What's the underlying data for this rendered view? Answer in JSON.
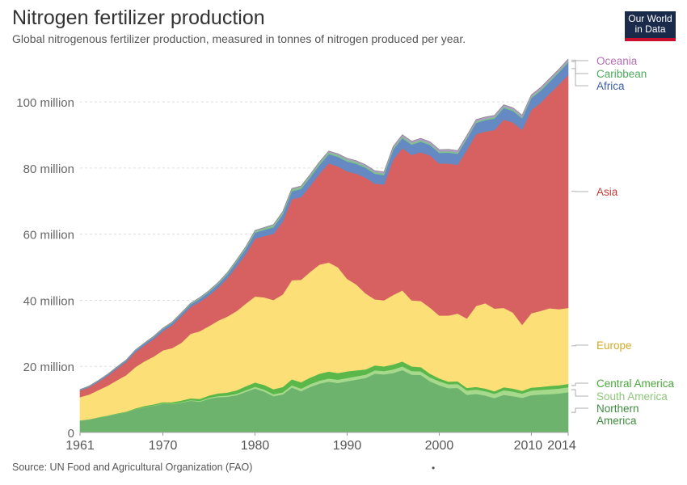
{
  "header": {
    "title": "Nitrogen fertilizer production",
    "subtitle": "Global nitrogenous fertilizer production, measured in tonnes of nitrogen produced per year.",
    "logo_line1": "Our World",
    "logo_line2": "in Data"
  },
  "footer": {
    "source": "Source: UN Food and Agricultural Organization (FAO)",
    "dot": "•"
  },
  "chart_data": {
    "type": "area",
    "stacked": true,
    "title": "Nitrogen fertilizer production",
    "subtitle": "Global nitrogenous fertilizer production, measured in tonnes of nitrogen produced per year.",
    "xlim": [
      1961,
      2014
    ],
    "ylim": [
      0,
      113000000
    ],
    "x_ticks": [
      1961,
      1970,
      1980,
      1990,
      2000,
      2010,
      2014
    ],
    "y_ticks": [
      {
        "value": 0,
        "label": "0"
      },
      {
        "value": 20000000,
        "label": "20 million"
      },
      {
        "value": 40000000,
        "label": "40 million"
      },
      {
        "value": 60000000,
        "label": "60 million"
      },
      {
        "value": 80000000,
        "label": "80 million"
      },
      {
        "value": 100000000,
        "label": "100 million"
      }
    ],
    "grid": true,
    "legend": "right-edge labels",
    "x": [
      1961,
      1962,
      1963,
      1964,
      1965,
      1966,
      1967,
      1968,
      1969,
      1970,
      1971,
      1972,
      1973,
      1974,
      1975,
      1976,
      1977,
      1978,
      1979,
      1980,
      1981,
      1982,
      1983,
      1984,
      1985,
      1986,
      1987,
      1988,
      1989,
      1990,
      1991,
      1992,
      1993,
      1994,
      1995,
      1996,
      1997,
      1998,
      1999,
      2000,
      2001,
      2002,
      2003,
      2004,
      2005,
      2006,
      2007,
      2008,
      2009,
      2010,
      2011,
      2012,
      2013,
      2014
    ],
    "series": [
      {
        "name": "Northern America",
        "label_lines": [
          "Northern",
          "America"
        ],
        "color": "#6db36d",
        "label_color": "#3d8b3d",
        "values": [
          3.6,
          3.9,
          4.5,
          5.0,
          5.6,
          6.1,
          7.0,
          7.7,
          8.1,
          8.7,
          8.6,
          9.0,
          9.6,
          9.3,
          10.2,
          10.7,
          10.8,
          11.3,
          12.3,
          13.3,
          12.4,
          11.0,
          11.5,
          13.6,
          12.5,
          13.8,
          14.8,
          15.4,
          15.0,
          15.5,
          16.0,
          16.5,
          17.8,
          17.6,
          18.0,
          18.9,
          17.5,
          17.4,
          15.5,
          14.3,
          13.4,
          13.5,
          11.4,
          11.7,
          11.2,
          10.4,
          11.4,
          11.0,
          10.5,
          11.3,
          11.5,
          11.6,
          11.8,
          12.2
        ]
      },
      {
        "name": "South America",
        "label_lines": [
          "South America"
        ],
        "color": "#a6d98c",
        "label_color": "#8dc77b",
        "values": [
          0.05,
          0.05,
          0.06,
          0.06,
          0.07,
          0.07,
          0.08,
          0.09,
          0.1,
          0.12,
          0.14,
          0.16,
          0.2,
          0.25,
          0.3,
          0.35,
          0.4,
          0.45,
          0.5,
          0.55,
          0.6,
          0.6,
          0.65,
          0.7,
          0.8,
          0.85,
          0.9,
          0.95,
          1.0,
          1.0,
          1.0,
          1.0,
          1.0,
          1.0,
          1.1,
          1.1,
          1.1,
          1.1,
          1.2,
          1.2,
          1.2,
          1.2,
          1.3,
          1.3,
          1.3,
          1.3,
          1.4,
          1.4,
          1.3,
          1.4,
          1.4,
          1.5,
          1.5,
          1.5
        ]
      },
      {
        "name": "Central America",
        "label_lines": [
          "Central America"
        ],
        "color": "#5ab84a",
        "label_color": "#4aa83a",
        "values": [
          0.05,
          0.06,
          0.08,
          0.1,
          0.12,
          0.15,
          0.2,
          0.25,
          0.3,
          0.35,
          0.4,
          0.5,
          0.55,
          0.6,
          0.7,
          0.8,
          0.9,
          1.0,
          1.2,
          1.3,
          1.4,
          1.5,
          1.6,
          1.8,
          1.9,
          2.0,
          2.1,
          2.1,
          2.0,
          2.0,
          1.8,
          1.6,
          1.5,
          1.4,
          1.5,
          1.5,
          1.4,
          1.3,
          1.1,
          0.9,
          0.8,
          0.8,
          0.8,
          0.8,
          0.8,
          0.8,
          0.9,
          0.9,
          0.8,
          0.9,
          0.9,
          1.0,
          1.0,
          1.0
        ]
      },
      {
        "name": "Europe",
        "label_lines": [
          "Europe"
        ],
        "color": "#fddf77",
        "label_color": "#d4a928",
        "values": [
          7.0,
          7.5,
          8.2,
          9.0,
          10.0,
          11.0,
          12.5,
          13.5,
          14.5,
          15.7,
          16.4,
          17.5,
          19.5,
          20.5,
          21.0,
          22.0,
          23.0,
          24.0,
          25.0,
          26.0,
          26.5,
          27.0,
          28.0,
          30.0,
          31.0,
          32.0,
          33.0,
          33.0,
          32.0,
          28.0,
          26.0,
          23.0,
          20.0,
          20.0,
          21.0,
          21.5,
          20.0,
          20.0,
          20.0,
          19.0,
          20.0,
          20.5,
          21.0,
          24.5,
          25.8,
          25.0,
          24.0,
          23.0,
          20.0,
          22.5,
          23.0,
          23.5,
          23.0,
          23.0
        ]
      },
      {
        "name": "Asia",
        "label_lines": [
          "Asia"
        ],
        "color": "#d76161",
        "label_color": "#c43c3c",
        "values": [
          2.0,
          2.2,
          2.5,
          3.0,
          3.5,
          4.0,
          4.5,
          4.8,
          5.3,
          5.8,
          6.9,
          8.0,
          8.1,
          8.9,
          9.3,
          10.0,
          11.6,
          13.5,
          15.0,
          17.5,
          18.5,
          20.0,
          22.0,
          24.5,
          25.0,
          26.0,
          27.5,
          30.0,
          30.5,
          32.5,
          33.5,
          35.0,
          35.0,
          35.0,
          41.0,
          43.0,
          44.0,
          45.0,
          46.0,
          46.0,
          46.0,
          45.0,
          51.0,
          52.0,
          52.0,
          54.0,
          57.0,
          57.5,
          59.0,
          61.5,
          63.0,
          65.0,
          68.0,
          70.5
        ]
      },
      {
        "name": "Africa",
        "label_lines": [
          "Africa"
        ],
        "color": "#6489c3",
        "label_color": "#3c5fa3",
        "values": [
          0.2,
          0.25,
          0.3,
          0.35,
          0.4,
          0.45,
          0.5,
          0.55,
          0.6,
          0.65,
          0.7,
          0.75,
          0.8,
          0.9,
          1.0,
          1.1,
          1.2,
          1.4,
          1.6,
          1.8,
          1.9,
          2.0,
          2.2,
          2.4,
          2.5,
          2.6,
          2.7,
          2.8,
          2.9,
          3.0,
          3.0,
          3.0,
          3.0,
          2.9,
          3.0,
          3.1,
          3.1,
          3.2,
          3.2,
          3.2,
          3.3,
          3.3,
          3.4,
          3.4,
          3.4,
          3.5,
          3.5,
          3.5,
          3.5,
          3.6,
          3.6,
          3.6,
          3.7,
          3.8
        ]
      },
      {
        "name": "Caribbean",
        "label_lines": [
          "Caribbean"
        ],
        "color": "#7fc28a",
        "label_color": "#4caa5c",
        "values": [
          0.05,
          0.05,
          0.06,
          0.07,
          0.08,
          0.09,
          0.1,
          0.12,
          0.14,
          0.16,
          0.18,
          0.2,
          0.22,
          0.25,
          0.28,
          0.3,
          0.35,
          0.4,
          0.45,
          0.5,
          0.55,
          0.6,
          0.6,
          0.6,
          0.6,
          0.6,
          0.6,
          0.6,
          0.6,
          0.6,
          0.55,
          0.5,
          0.5,
          0.5,
          0.5,
          0.5,
          0.5,
          0.5,
          0.45,
          0.45,
          0.45,
          0.45,
          0.45,
          0.45,
          0.45,
          0.45,
          0.45,
          0.45,
          0.4,
          0.45,
          0.45,
          0.45,
          0.45,
          0.45
        ]
      },
      {
        "name": "Oceania",
        "label_lines": [
          "Oceania"
        ],
        "color": "#b39bc8",
        "label_color": "#b46fb4",
        "values": [
          0.05,
          0.05,
          0.05,
          0.06,
          0.06,
          0.07,
          0.07,
          0.08,
          0.08,
          0.09,
          0.1,
          0.1,
          0.11,
          0.12,
          0.13,
          0.14,
          0.15,
          0.16,
          0.17,
          0.18,
          0.19,
          0.2,
          0.22,
          0.24,
          0.25,
          0.26,
          0.28,
          0.3,
          0.32,
          0.34,
          0.36,
          0.38,
          0.4,
          0.42,
          0.45,
          0.5,
          0.5,
          0.5,
          0.5,
          0.5,
          0.5,
          0.5,
          0.5,
          0.5,
          0.5,
          0.5,
          0.5,
          0.5,
          0.5,
          0.5,
          0.5,
          0.5,
          0.5,
          0.5
        ]
      }
    ],
    "units": "million tonnes"
  }
}
